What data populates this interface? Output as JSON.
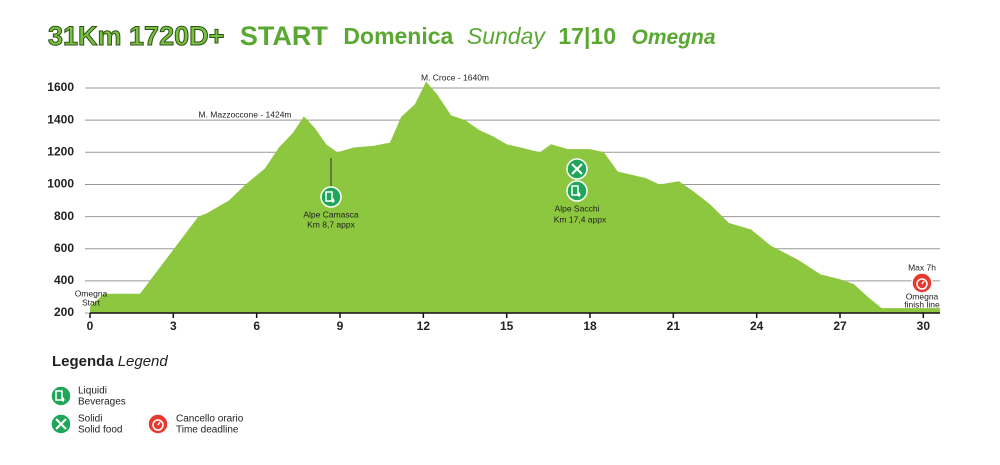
{
  "chart_data": {
    "type": "area",
    "title": [
      "31Km 1720D+",
      "START",
      "Domenica",
      "Sunday",
      "17|10",
      "Omegna"
    ],
    "x": [
      0,
      0.5,
      1.8,
      2.5,
      3.2,
      3.9,
      4.2,
      5,
      5.6,
      6.3,
      6.8,
      7.3,
      7.7,
      8.1,
      8.5,
      8.9,
      9.5,
      10.2,
      10.8,
      11.2,
      11.7,
      12.1,
      12.5,
      13,
      13.5,
      14,
      14.5,
      15,
      15.5,
      16.2,
      16.6,
      17.2,
      18,
      18.5,
      19,
      20,
      20.5,
      21.2,
      21.7,
      22.3,
      23,
      23.8,
      24.5,
      25.5,
      26.3,
      27,
      27.5,
      28,
      28.5,
      30.6
    ],
    "values": [
      240,
      320,
      320,
      480,
      640,
      800,
      820,
      900,
      1000,
      1100,
      1230,
      1320,
      1424,
      1350,
      1250,
      1200,
      1230,
      1240,
      1260,
      1420,
      1500,
      1640,
      1560,
      1430,
      1400,
      1340,
      1300,
      1250,
      1230,
      1200,
      1250,
      1220,
      1220,
      1200,
      1080,
      1040,
      1000,
      1020,
      960,
      880,
      760,
      720,
      620,
      530,
      440,
      410,
      380,
      300,
      230,
      230
    ],
    "color": "#8dc63f",
    "xlim": [
      0,
      30.6
    ],
    "ylim": [
      200,
      1650
    ],
    "xticks": [
      0,
      3,
      6,
      9,
      12,
      15,
      18,
      21,
      24,
      27,
      30
    ],
    "yticks": [
      200,
      400,
      600,
      800,
      1000,
      1200,
      1400,
      1600
    ],
    "grid": true,
    "annotations": [
      {
        "text": "M. Mazzoccone - 1424m"
      },
      {
        "text": "M. Croce - 1640m"
      },
      {
        "lines": [
          "Alpe Camasca",
          "Km 8,7 appx"
        ]
      },
      {
        "lines": [
          "Alpe Sacchi",
          "Km 17,4 appx"
        ]
      },
      {
        "lines": [
          "Omegna",
          "Start"
        ]
      },
      {
        "lines": [
          "Max 7h",
          "Omegna",
          "finish line"
        ]
      }
    ],
    "legend": {
      "title": [
        "Legenda",
        "Legend"
      ],
      "items": [
        [
          "Liquidi",
          "Beverages"
        ],
        [
          "Solidi",
          "Solid food"
        ],
        [
          "Cancello orario",
          "Time deadline"
        ]
      ]
    }
  }
}
